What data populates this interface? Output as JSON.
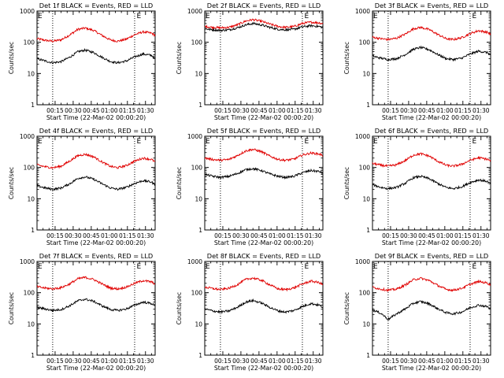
{
  "figure": {
    "time_axis_label": "Start Time (22-Mar-02 00:00:20)",
    "y_axis_label": "Counts/sec",
    "colors": {
      "events": "#000000",
      "lld": "#e00000",
      "axes": "#000000"
    }
  },
  "chart_data": [
    {
      "type": "line",
      "title": "Det 1f BLACK = Events, RED = LLD",
      "xlabel": "Start Time (22-Mar-02 00:00:20)",
      "ylabel": "Counts/sec",
      "yscale": "log",
      "ylim": [
        1,
        1000
      ],
      "xlim": [
        "00:00",
        "01:38"
      ],
      "x_ticks": [
        "00:15",
        "00:30",
        "00:45",
        "01:00",
        "01:15",
        "01:30"
      ],
      "y_ticks": [
        "1",
        "10",
        "100",
        "1000"
      ],
      "markers": [
        {
          "label": "E",
          "x": "00:00"
        },
        {
          "label": "E",
          "x": "01:22"
        }
      ],
      "vlines": [
        "00:13",
        "01:21"
      ],
      "x": [
        "00:00",
        "00:07",
        "00:13",
        "00:20",
        "00:27",
        "00:34",
        "00:40",
        "00:47",
        "00:54",
        "01:01",
        "01:07",
        "01:14",
        "01:21",
        "01:28",
        "01:35",
        "01:38"
      ],
      "series": [
        {
          "name": "LLD",
          "color": "#e00000",
          "values": [
            130,
            115,
            108,
            120,
            170,
            260,
            285,
            240,
            165,
            118,
            108,
            125,
            175,
            215,
            195,
            165
          ]
        },
        {
          "name": "Events",
          "color": "#000000",
          "values": [
            30,
            25,
            22,
            24,
            33,
            50,
            56,
            47,
            33,
            24,
            22,
            25,
            34,
            42,
            38,
            30
          ]
        }
      ]
    },
    {
      "type": "line",
      "title": "Det 2f BLACK = Events, RED = LLD",
      "xlabel": "Start Time (22-Mar-02 00:00:20)",
      "ylabel": "Counts/sec",
      "yscale": "log",
      "ylim": [
        1,
        1000
      ],
      "xlim": [
        "00:00",
        "01:38"
      ],
      "x_ticks": [
        "00:15",
        "00:30",
        "00:45",
        "01:00",
        "01:15",
        "01:30"
      ],
      "y_ticks": [
        "1",
        "10",
        "100",
        "1000"
      ],
      "markers": [
        {
          "label": "E",
          "x": "00:00"
        },
        {
          "label": "E",
          "x": "01:22"
        }
      ],
      "vlines": [
        "00:13",
        "01:21"
      ],
      "x": [
        "00:00",
        "00:07",
        "00:13",
        "00:20",
        "00:27",
        "00:34",
        "00:40",
        "00:47",
        "00:54",
        "01:01",
        "01:07",
        "01:14",
        "01:21",
        "01:28",
        "01:35",
        "01:38"
      ],
      "series": [
        {
          "name": "LLD",
          "color": "#e00000",
          "values": [
            320,
            300,
            290,
            300,
            360,
            480,
            530,
            470,
            380,
            320,
            300,
            320,
            400,
            440,
            420,
            390
          ]
        },
        {
          "name": "Events",
          "color": "#000000",
          "values": [
            270,
            250,
            240,
            250,
            290,
            360,
            400,
            360,
            300,
            260,
            250,
            260,
            310,
            340,
            320,
            300
          ]
        }
      ]
    },
    {
      "type": "line",
      "title": "Det 3f BLACK = Events, RED = LLD",
      "xlabel": "Start Time (22-Mar-02 00:00:20)",
      "ylabel": "Counts/sec",
      "yscale": "log",
      "ylim": [
        1,
        1000
      ],
      "xlim": [
        "00:00",
        "01:38"
      ],
      "x_ticks": [
        "00:15",
        "00:30",
        "00:45",
        "01:00",
        "01:15",
        "01:30"
      ],
      "y_ticks": [
        "1",
        "10",
        "100",
        "1000"
      ],
      "markers": [
        {
          "label": "E",
          "x": "00:00"
        },
        {
          "label": "E",
          "x": "01:22"
        }
      ],
      "vlines": [
        "00:13",
        "01:21"
      ],
      "x": [
        "00:00",
        "00:07",
        "00:13",
        "00:20",
        "00:27",
        "00:34",
        "00:40",
        "00:47",
        "00:54",
        "01:01",
        "01:07",
        "01:14",
        "01:21",
        "01:28",
        "01:35",
        "01:38"
      ],
      "series": [
        {
          "name": "LLD",
          "color": "#e00000",
          "values": [
            145,
            130,
            122,
            135,
            180,
            270,
            300,
            255,
            180,
            130,
            122,
            140,
            190,
            235,
            210,
            180
          ]
        },
        {
          "name": "Events",
          "color": "#000000",
          "values": [
            36,
            31,
            28,
            30,
            40,
            60,
            68,
            58,
            41,
            30,
            28,
            31,
            42,
            52,
            47,
            40
          ]
        }
      ]
    },
    {
      "type": "line",
      "title": "Det 4f BLACK = Events, RED = LLD",
      "xlabel": "Start Time (22-Mar-02 00:00:20)",
      "ylabel": "Counts/sec",
      "yscale": "log",
      "ylim": [
        1,
        1000
      ],
      "xlim": [
        "00:00",
        "01:38"
      ],
      "x_ticks": [
        "00:15",
        "00:30",
        "00:45",
        "01:00",
        "01:15",
        "01:30"
      ],
      "y_ticks": [
        "1",
        "10",
        "100",
        "1000"
      ],
      "markers": [
        {
          "label": "E",
          "x": "00:00"
        },
        {
          "label": "E",
          "x": "01:22"
        }
      ],
      "vlines": [
        "00:13",
        "01:21"
      ],
      "x": [
        "00:00",
        "00:07",
        "00:13",
        "00:20",
        "00:27",
        "00:34",
        "00:40",
        "00:47",
        "00:54",
        "01:01",
        "01:07",
        "01:14",
        "01:21",
        "01:28",
        "01:35",
        "01:38"
      ],
      "series": [
        {
          "name": "LLD",
          "color": "#e00000",
          "values": [
            120,
            105,
            98,
            110,
            160,
            240,
            265,
            220,
            150,
            108,
            98,
            115,
            160,
            200,
            180,
            150
          ]
        },
        {
          "name": "Events",
          "color": "#000000",
          "values": [
            26,
            22,
            20,
            22,
            30,
            45,
            50,
            42,
            30,
            22,
            20,
            23,
            31,
            38,
            34,
            28
          ]
        }
      ]
    },
    {
      "type": "line",
      "title": "Det 5f BLACK = Events, RED = LLD",
      "xlabel": "Start Time (22-Mar-02 00:00:20)",
      "ylabel": "Counts/sec",
      "yscale": "log",
      "ylim": [
        1,
        1000
      ],
      "xlim": [
        "00:00",
        "01:38"
      ],
      "x_ticks": [
        "00:15",
        "00:30",
        "00:45",
        "01:00",
        "01:15",
        "01:30"
      ],
      "y_ticks": [
        "1",
        "10",
        "100",
        "1000"
      ],
      "markers": [
        {
          "label": "E",
          "x": "00:00"
        },
        {
          "label": "E",
          "x": "01:22"
        }
      ],
      "vlines": [
        "00:13",
        "01:21"
      ],
      "x": [
        "00:00",
        "00:07",
        "00:13",
        "00:20",
        "00:27",
        "00:34",
        "00:40",
        "00:47",
        "00:54",
        "01:01",
        "01:07",
        "01:14",
        "01:21",
        "01:28",
        "01:35",
        "01:38"
      ],
      "series": [
        {
          "name": "LLD",
          "color": "#e00000",
          "values": [
            200,
            180,
            170,
            180,
            240,
            340,
            380,
            320,
            230,
            180,
            170,
            185,
            250,
            290,
            270,
            240
          ]
        },
        {
          "name": "Events",
          "color": "#000000",
          "values": [
            60,
            52,
            48,
            52,
            64,
            85,
            92,
            80,
            62,
            52,
            48,
            52,
            68,
            80,
            74,
            66
          ]
        }
      ]
    },
    {
      "type": "line",
      "title": "Det 6f BLACK = Events, RED = LLD",
      "xlabel": "Start Time (22-Mar-02 00:00:20)",
      "ylabel": "Counts/sec",
      "yscale": "log",
      "ylim": [
        1,
        1000
      ],
      "xlim": [
        "00:00",
        "01:38"
      ],
      "x_ticks": [
        "00:15",
        "00:30",
        "00:45",
        "01:00",
        "01:15",
        "01:30"
      ],
      "y_ticks": [
        "1",
        "10",
        "100",
        "1000"
      ],
      "markers": [
        {
          "label": "E",
          "x": "00:00"
        },
        {
          "label": "E",
          "x": "01:22"
        }
      ],
      "vlines": [
        "00:13",
        "01:21"
      ],
      "x": [
        "00:00",
        "00:07",
        "00:13",
        "00:20",
        "00:27",
        "00:34",
        "00:40",
        "00:47",
        "00:54",
        "01:01",
        "01:07",
        "01:14",
        "01:21",
        "01:28",
        "01:35",
        "01:38"
      ],
      "series": [
        {
          "name": "LLD",
          "color": "#e00000",
          "values": [
            135,
            118,
            110,
            122,
            165,
            250,
            275,
            232,
            160,
            118,
            110,
            126,
            170,
            205,
            185,
            160
          ]
        },
        {
          "name": "Events",
          "color": "#000000",
          "values": [
            28,
            23,
            21,
            23,
            31,
            47,
            52,
            44,
            31,
            23,
            21,
            24,
            33,
            40,
            36,
            30
          ]
        }
      ]
    },
    {
      "type": "line",
      "title": "Det 7f BLACK = Events, RED = LLD",
      "xlabel": "Start Time (22-Mar-02 00:00:20)",
      "ylabel": "Counts/sec",
      "yscale": "log",
      "ylim": [
        1,
        1000
      ],
      "xlim": [
        "00:00",
        "01:38"
      ],
      "x_ticks": [
        "00:15",
        "00:30",
        "00:45",
        "01:00",
        "01:15",
        "01:30"
      ],
      "y_ticks": [
        "1",
        "10",
        "100",
        "1000"
      ],
      "markers": [
        {
          "label": "E",
          "x": "00:00"
        },
        {
          "label": "E",
          "x": "01:22"
        }
      ],
      "vlines": [
        "00:13",
        "01:21"
      ],
      "x": [
        "00:00",
        "00:07",
        "00:13",
        "00:20",
        "00:27",
        "00:34",
        "00:40",
        "00:47",
        "00:54",
        "01:01",
        "01:07",
        "01:14",
        "01:21",
        "01:28",
        "01:35",
        "01:38"
      ],
      "series": [
        {
          "name": "LLD",
          "color": "#e00000",
          "values": [
            155,
            140,
            132,
            145,
            190,
            280,
            310,
            265,
            190,
            140,
            132,
            150,
            200,
            245,
            220,
            190
          ]
        },
        {
          "name": "Events",
          "color": "#000000",
          "values": [
            34,
            30,
            27,
            29,
            38,
            55,
            62,
            53,
            38,
            29,
            27,
            30,
            40,
            50,
            45,
            38
          ]
        }
      ]
    },
    {
      "type": "line",
      "title": "Det 8f BLACK = Events, RED = LLD",
      "xlabel": "Start Time (22-Mar-02 00:00:20)",
      "ylabel": "Counts/sec",
      "yscale": "log",
      "ylim": [
        1,
        1000
      ],
      "xlim": [
        "00:00",
        "01:38"
      ],
      "x_ticks": [
        "00:15",
        "00:30",
        "00:45",
        "01:00",
        "01:15",
        "01:30"
      ],
      "y_ticks": [
        "1",
        "10",
        "100",
        "1000"
      ],
      "markers": [
        {
          "label": "E",
          "x": "00:00"
        },
        {
          "label": "E",
          "x": "01:22"
        }
      ],
      "vlines": [
        "00:13",
        "01:21"
      ],
      "x": [
        "00:00",
        "00:07",
        "00:13",
        "00:20",
        "00:27",
        "00:34",
        "00:40",
        "00:47",
        "00:54",
        "01:01",
        "01:07",
        "01:14",
        "01:21",
        "01:28",
        "01:35",
        "01:38"
      ],
      "series": [
        {
          "name": "LLD",
          "color": "#e00000",
          "values": [
            150,
            135,
            126,
            138,
            180,
            265,
            295,
            250,
            178,
            132,
            125,
            142,
            190,
            235,
            210,
            180
          ]
        },
        {
          "name": "Events",
          "color": "#000000",
          "values": [
            30,
            26,
            24,
            26,
            34,
            50,
            56,
            47,
            34,
            26,
            24,
            27,
            36,
            45,
            40,
            34
          ]
        }
      ]
    },
    {
      "type": "line",
      "title": "Det 9f BLACK = Events, RED = LLD",
      "xlabel": "Start Time (22-Mar-02 00:00:20)",
      "ylabel": "Counts/sec",
      "yscale": "log",
      "ylim": [
        1,
        1000
      ],
      "xlim": [
        "00:00",
        "01:38"
      ],
      "x_ticks": [
        "00:15",
        "00:30",
        "00:45",
        "01:00",
        "01:15",
        "01:30"
      ],
      "y_ticks": [
        "1",
        "10",
        "100",
        "1000"
      ],
      "markers": [
        {
          "label": "E",
          "x": "00:00"
        },
        {
          "label": "E",
          "x": "01:22"
        }
      ],
      "vlines": [
        "00:13",
        "01:21"
      ],
      "x": [
        "00:00",
        "00:07",
        "00:13",
        "00:20",
        "00:27",
        "00:34",
        "00:40",
        "00:47",
        "00:54",
        "01:01",
        "01:07",
        "01:14",
        "01:21",
        "01:28",
        "01:35",
        "01:38"
      ],
      "series": [
        {
          "name": "LLD",
          "color": "#e00000",
          "values": [
            150,
            130,
            120,
            130,
            175,
            260,
            290,
            245,
            172,
            128,
            120,
            138,
            185,
            228,
            205,
            178
          ]
        },
        {
          "name": "Events",
          "color": "#000000",
          "values": [
            28,
            22,
            14,
            21,
            30,
            46,
            52,
            44,
            31,
            23,
            21,
            24,
            33,
            40,
            36,
            30
          ]
        }
      ]
    }
  ]
}
